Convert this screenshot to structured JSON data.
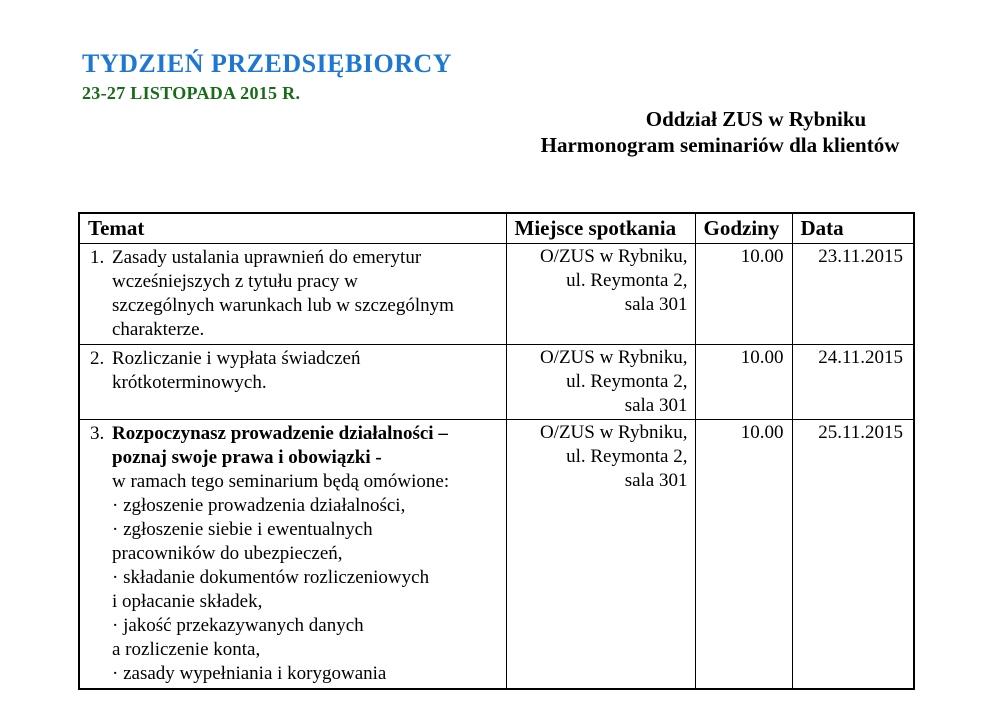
{
  "header": {
    "title": "TYDZIEŃ PRZEDSIĘBIORCY",
    "subtitle": "23-27 LISTOPADA 2015 R.",
    "org_line1": "Oddział ZUS w Rybniku",
    "org_line2": "Harmonogram seminariów dla klientów"
  },
  "colors": {
    "title_blue": "#1E78D2",
    "subtitle_green": "#186C18"
  },
  "table": {
    "headers": [
      "Temat",
      "Miejsce spotkania",
      "Godziny",
      "Data"
    ],
    "rows": [
      {
        "number": "1.",
        "topic_bold": [],
        "topic_lines": [
          "Zasady ustalania uprawnień do emerytur",
          "wcześniejszych z tytułu pracy w",
          "szczególnych warunkach lub w szczególnym",
          "charakterze."
        ],
        "place_lines": [
          "O/ZUS w Rybniku,",
          "ul. Reymonta 2,",
          "sala 301"
        ],
        "time": "10.00",
        "date": "23.11.2015"
      },
      {
        "number": "2.",
        "topic_bold": [],
        "topic_lines": [
          "Rozliczanie i wypłata świadczeń",
          "krótkoterminowych."
        ],
        "place_lines": [
          "O/ZUS w Rybniku,",
          "ul. Reymonta 2,",
          "sala 301"
        ],
        "time": "10.00",
        "date": "24.11.2015"
      },
      {
        "number": "3.",
        "topic_bold": [
          "Rozpoczynasz prowadzenie działalności –",
          "poznaj swoje prawa i obowiązki -"
        ],
        "topic_lines": [
          "w ramach tego seminarium będą omówione:",
          "· zgłoszenie prowadzenia działalności,",
          "· zgłoszenie siebie i ewentualnych",
          "pracowników do ubezpieczeń,",
          "· składanie dokumentów rozliczeniowych",
          "i opłacanie składek,",
          "· jakość przekazywanych danych",
          "a rozliczenie konta,",
          "· zasady wypełniania i korygowania"
        ],
        "place_lines": [
          "O/ZUS w Rybniku,",
          "ul. Reymonta 2,",
          "sala 301"
        ],
        "time": "10.00",
        "date": "25.11.2015"
      }
    ]
  }
}
